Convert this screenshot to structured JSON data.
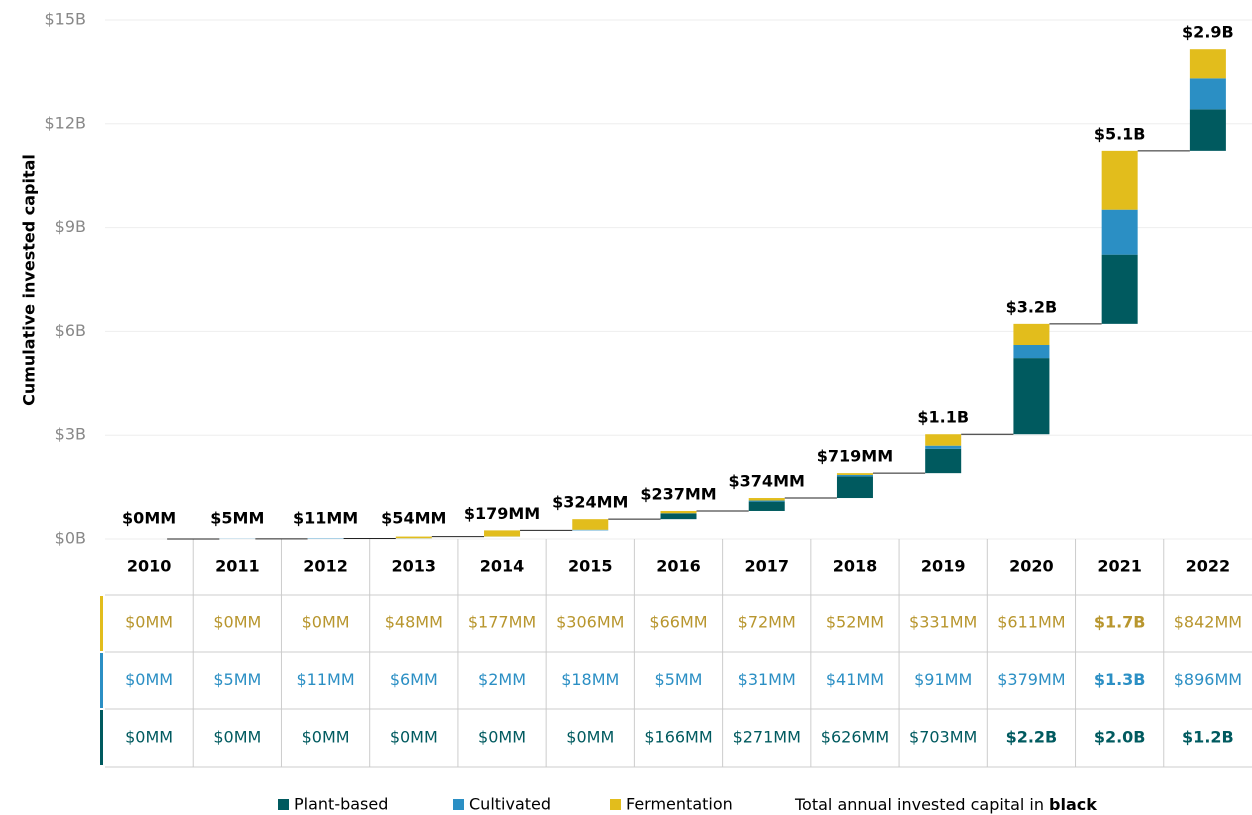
{
  "chart_data": {
    "type": "waterfall-stacked",
    "y_label": "Cumulative invested capital",
    "categories": [
      "2010",
      "2011",
      "2012",
      "2013",
      "2014",
      "2015",
      "2016",
      "2017",
      "2018",
      "2019",
      "2020",
      "2021",
      "2022"
    ],
    "series": [
      {
        "name": "Plant-based",
        "color": "#005a5f",
        "text_color": "#005a5f",
        "values": [
          0,
          0,
          0,
          0,
          0,
          0,
          0.166,
          0.271,
          0.626,
          0.703,
          2.2,
          2.0,
          1.2
        ],
        "value_labels": [
          "$0MM",
          "$0MM",
          "$0MM",
          "$0MM",
          "$0MM",
          "$0MM",
          "$166MM",
          "$271MM",
          "$626MM",
          "$703MM",
          "$2.2B",
          "$2.0B",
          "$1.2B"
        ]
      },
      {
        "name": "Cultivated",
        "color": "#2b8fc4",
        "text_color": "#2b8fc4",
        "values": [
          0,
          0.005,
          0.011,
          0.006,
          0.002,
          0.018,
          0.005,
          0.031,
          0.041,
          0.091,
          0.379,
          1.3,
          0.896
        ],
        "value_labels": [
          "$0MM",
          "$5MM",
          "$11MM",
          "$6MM",
          "$2MM",
          "$18MM",
          "$5MM",
          "$31MM",
          "$41MM",
          "$91MM",
          "$379MM",
          "$1.3B",
          "$896MM"
        ]
      },
      {
        "name": "Fermentation",
        "color": "#e2bd1c",
        "text_color": "#b8962e",
        "values": [
          0,
          0,
          0,
          0.048,
          0.177,
          0.306,
          0.066,
          0.072,
          0.052,
          0.331,
          0.611,
          1.7,
          0.842
        ],
        "value_labels": [
          "$0MM",
          "$0MM",
          "$0MM",
          "$48MM",
          "$177MM",
          "$306MM",
          "$66MM",
          "$72MM",
          "$52MM",
          "$331MM",
          "$611MM",
          "$1.7B",
          "$842MM"
        ]
      }
    ],
    "totals": {
      "values": [
        0,
        0.005,
        0.011,
        0.054,
        0.179,
        0.324,
        0.237,
        0.374,
        0.719,
        1.1,
        3.2,
        5.1,
        2.9
      ],
      "value_labels": [
        "$0MM",
        "$5MM",
        "$11MM",
        "$54MM",
        "$179MM",
        "$324MM",
        "$237MM",
        "$374MM",
        "$719MM",
        "$1.1B",
        "$3.2B",
        "$5.1B",
        "$2.9B"
      ]
    },
    "ylim": [
      0,
      15
    ],
    "yticks": [
      {
        "value": 0,
        "label": "$0B"
      },
      {
        "value": 3,
        "label": "$3B"
      },
      {
        "value": 6,
        "label": "$6B"
      },
      {
        "value": 9,
        "label": "$9B"
      },
      {
        "value": 12,
        "label": "$12B"
      },
      {
        "value": 15,
        "label": "$15B"
      }
    ],
    "grid": true,
    "legend_note": "Total annual invested capital in",
    "legend_note_bold": "black"
  }
}
